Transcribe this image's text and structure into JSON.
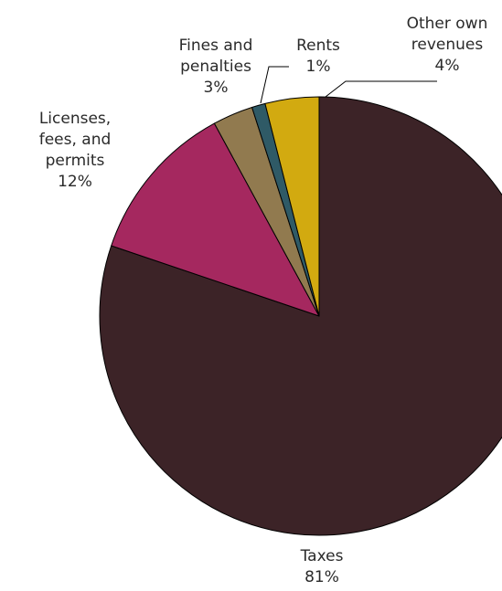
{
  "chart_data": {
    "type": "pie",
    "title": "",
    "start_angle_deg": 0,
    "direction": "clockwise",
    "slices": [
      {
        "label": [
          "Taxes"
        ],
        "pct_label": "81%",
        "value": 81,
        "color": "#3c2327"
      },
      {
        "label": [
          "Licenses,",
          "fees, and",
          "permits"
        ],
        "pct_label": "12%",
        "value": 12,
        "color": "#a5285f"
      },
      {
        "label": [
          "Fines and",
          "penalties"
        ],
        "pct_label": "3%",
        "value": 3,
        "color": "#917a4f"
      },
      {
        "label": [
          "Rents"
        ],
        "pct_label": "1%",
        "value": 1,
        "color": "#2f5a66"
      },
      {
        "label": [
          "Other own",
          "revenues"
        ],
        "pct_label": "4%",
        "value": 4,
        "color": "#d2aa10"
      }
    ]
  }
}
